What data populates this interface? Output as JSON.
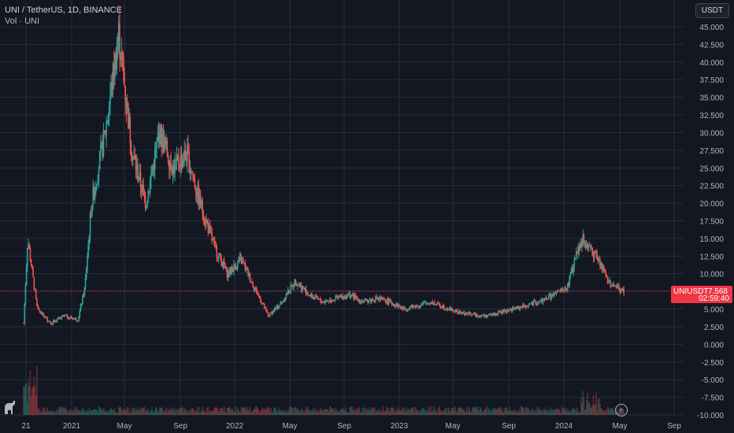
{
  "legend": {
    "title": "UNI / TetherUS, 1D, BINANCE",
    "volume_label": "Vol · UNI"
  },
  "currency_button": "USDT",
  "price_tag": {
    "symbol": "UNIUSDT",
    "value": "7.568",
    "countdown": "02:59:40"
  },
  "icons": {
    "logo": "dino-logo-icon",
    "replay": "lightning-icon"
  },
  "colors": {
    "background": "#131722",
    "up": "#26a69a",
    "down": "#ef5350",
    "price_line": "#f23645",
    "grid": "#2a2e39",
    "axis_text": "#b2b5be"
  },
  "chart_data": {
    "type": "candlestick",
    "title": "UNI / TetherUS, 1D, BINANCE",
    "x_ticks": [
      "21",
      "2021",
      "May",
      "Sep",
      "2022",
      "May",
      "Sep",
      "2023",
      "May",
      "Sep",
      "2024",
      "May",
      "Sep"
    ],
    "y_ticks": [
      "45.000",
      "42.500",
      "40.000",
      "37.500",
      "35.000",
      "32.500",
      "30.000",
      "27.500",
      "25.000",
      "22.500",
      "20.000",
      "17.500",
      "15.000",
      "12.500",
      "10.000",
      "7.500",
      "5.000",
      "2.500",
      "0.000",
      "-2.500",
      "-5.000",
      "-7.500",
      "-10.000"
    ],
    "ylim": [
      -10,
      45
    ],
    "last_price": 7.568,
    "price_series": {
      "note_x_is_month_index_from_sep_2020": true,
      "x": [
        0,
        0.3,
        1,
        2,
        3,
        4,
        4.5,
        5,
        6,
        7,
        8,
        9,
        10,
        11,
        12,
        13,
        14,
        15,
        16,
        17,
        18,
        19,
        20,
        21,
        22,
        23,
        24,
        25,
        26,
        27,
        28,
        30,
        32,
        34,
        36,
        38,
        40,
        41,
        42,
        43,
        44,
        45,
        46,
        47,
        48
      ],
      "close": [
        3,
        15,
        5,
        3,
        4,
        3.5,
        8,
        20,
        30,
        44,
        27,
        20,
        30,
        25,
        27,
        20,
        14,
        10,
        12,
        8,
        4,
        6,
        9,
        7,
        6,
        6.5,
        7,
        6,
        6.5,
        6,
        5,
        6,
        4.5,
        4,
        5,
        6,
        8,
        15,
        13,
        9,
        7.568,
        7.568,
        7.568,
        7.568,
        7.568
      ]
    },
    "volume_series": "bars along bottom (volume overlay, values not labeled)"
  }
}
